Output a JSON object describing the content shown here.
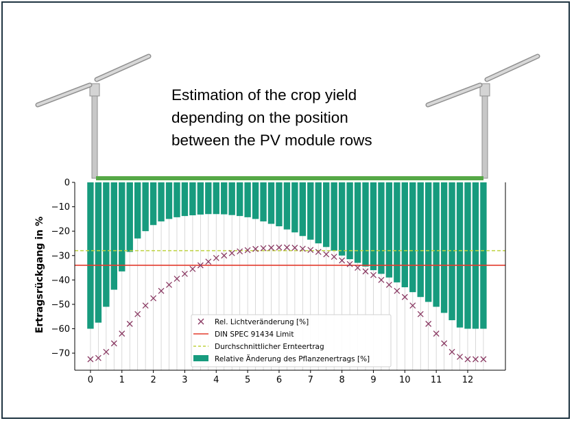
{
  "headline": {
    "lines": [
      "Estimation of the crop yield",
      "depending on the position",
      "between the PV module rows"
    ]
  },
  "icons": {
    "left_tracker": "solar-tracker-icon",
    "right_tracker": "solar-tracker-icon",
    "field_strip": "crop-field-strip"
  },
  "colors": {
    "frame": "#1e3340",
    "bar": "#179b7e",
    "marker": "#8a3a63",
    "limit_line": "#e33a2c",
    "average_line": "#bdd23c",
    "field_strip": "#56a846",
    "module": "#bfbfbf"
  },
  "chart_data": {
    "type": "bar",
    "ylabel": "Ertragsrückgang in %",
    "xlabel": "",
    "xlim": [
      -0.5,
      13.2
    ],
    "ylim": [
      -77,
      0
    ],
    "xticks": [
      0,
      1,
      2,
      3,
      4,
      5,
      6,
      7,
      8,
      9,
      10,
      11,
      12
    ],
    "yticks": [
      0,
      -10,
      -20,
      -30,
      -40,
      -50,
      -60,
      -70
    ],
    "grid": "vertical",
    "legend_position": "lower-center",
    "legend": [
      "Rel. Lichtveränderung [%]",
      "DIN SPEC 91434 Limit",
      "Durchschnittlicher Ernteertrag",
      "Relative Änderung des Pflanzenertrags [%]"
    ],
    "bars": {
      "name": "Relative Änderung des Pflanzenertrags [%]",
      "x": [
        0,
        0.25,
        0.5,
        0.75,
        1.0,
        1.25,
        1.5,
        1.75,
        2.0,
        2.25,
        2.5,
        2.75,
        3.0,
        3.25,
        3.5,
        3.75,
        4.0,
        4.25,
        4.5,
        4.75,
        5.0,
        5.25,
        5.5,
        5.75,
        6.0,
        6.25,
        6.5,
        6.75,
        7.0,
        7.25,
        7.5,
        7.75,
        8.0,
        8.25,
        8.5,
        8.75,
        9.0,
        9.25,
        9.5,
        9.75,
        10.0,
        10.25,
        10.5,
        10.75,
        11.0,
        11.25,
        11.5,
        11.75,
        12.0,
        12.25,
        12.5
      ],
      "values": [
        -60,
        -57.5,
        -51,
        -44,
        -36.5,
        -28.5,
        -23,
        -20,
        -17.5,
        -16,
        -15,
        -14.3,
        -13.8,
        -13.5,
        -13.2,
        -13,
        -13,
        -13.1,
        -13.4,
        -13.8,
        -14.3,
        -15,
        -16,
        -17,
        -18,
        -19.3,
        -20.5,
        -22,
        -23.5,
        -25,
        -26.5,
        -28,
        -30,
        -31.5,
        -33,
        -34.5,
        -36,
        -37.5,
        -39,
        -41,
        -43,
        -45,
        -47,
        -49,
        -51,
        -53.5,
        -56.5,
        -59.5,
        -60,
        -60,
        -60
      ]
    },
    "scatter": {
      "name": "Rel. Lichtveränderung [%]",
      "x": [
        0,
        0.25,
        0.5,
        0.75,
        1.0,
        1.25,
        1.5,
        1.75,
        2.0,
        2.25,
        2.5,
        2.75,
        3.0,
        3.25,
        3.5,
        3.75,
        4.0,
        4.25,
        4.5,
        4.75,
        5.0,
        5.25,
        5.5,
        5.75,
        6.0,
        6.25,
        6.5,
        6.75,
        7.0,
        7.25,
        7.5,
        7.75,
        8.0,
        8.25,
        8.5,
        8.75,
        9.0,
        9.25,
        9.5,
        9.75,
        10.0,
        10.25,
        10.5,
        10.75,
        11.0,
        11.25,
        11.5,
        11.75,
        12.0,
        12.25,
        12.5
      ],
      "values": [
        -72.5,
        -72,
        -69.5,
        -66,
        -62,
        -58,
        -54,
        -50.5,
        -47.5,
        -44.5,
        -42,
        -39.5,
        -37.5,
        -35.5,
        -34,
        -32.5,
        -31,
        -30,
        -29,
        -28.3,
        -27.8,
        -27.3,
        -27,
        -26.8,
        -26.7,
        -26.7,
        -26.8,
        -27.2,
        -27.7,
        -28.5,
        -29.5,
        -30.5,
        -32,
        -33.5,
        -35,
        -36.5,
        -38,
        -40,
        -42,
        -44.5,
        -47,
        -50.5,
        -54,
        -58,
        -62,
        -66,
        -69.5,
        -71.5,
        -72.5,
        -72.5,
        -72.5
      ]
    },
    "reference_lines": [
      {
        "name": "DIN SPEC 91434 Limit",
        "y": -34,
        "style": "solid"
      },
      {
        "name": "Durchschnittlicher Ernteertrag",
        "y": -28,
        "style": "dashed"
      }
    ]
  }
}
